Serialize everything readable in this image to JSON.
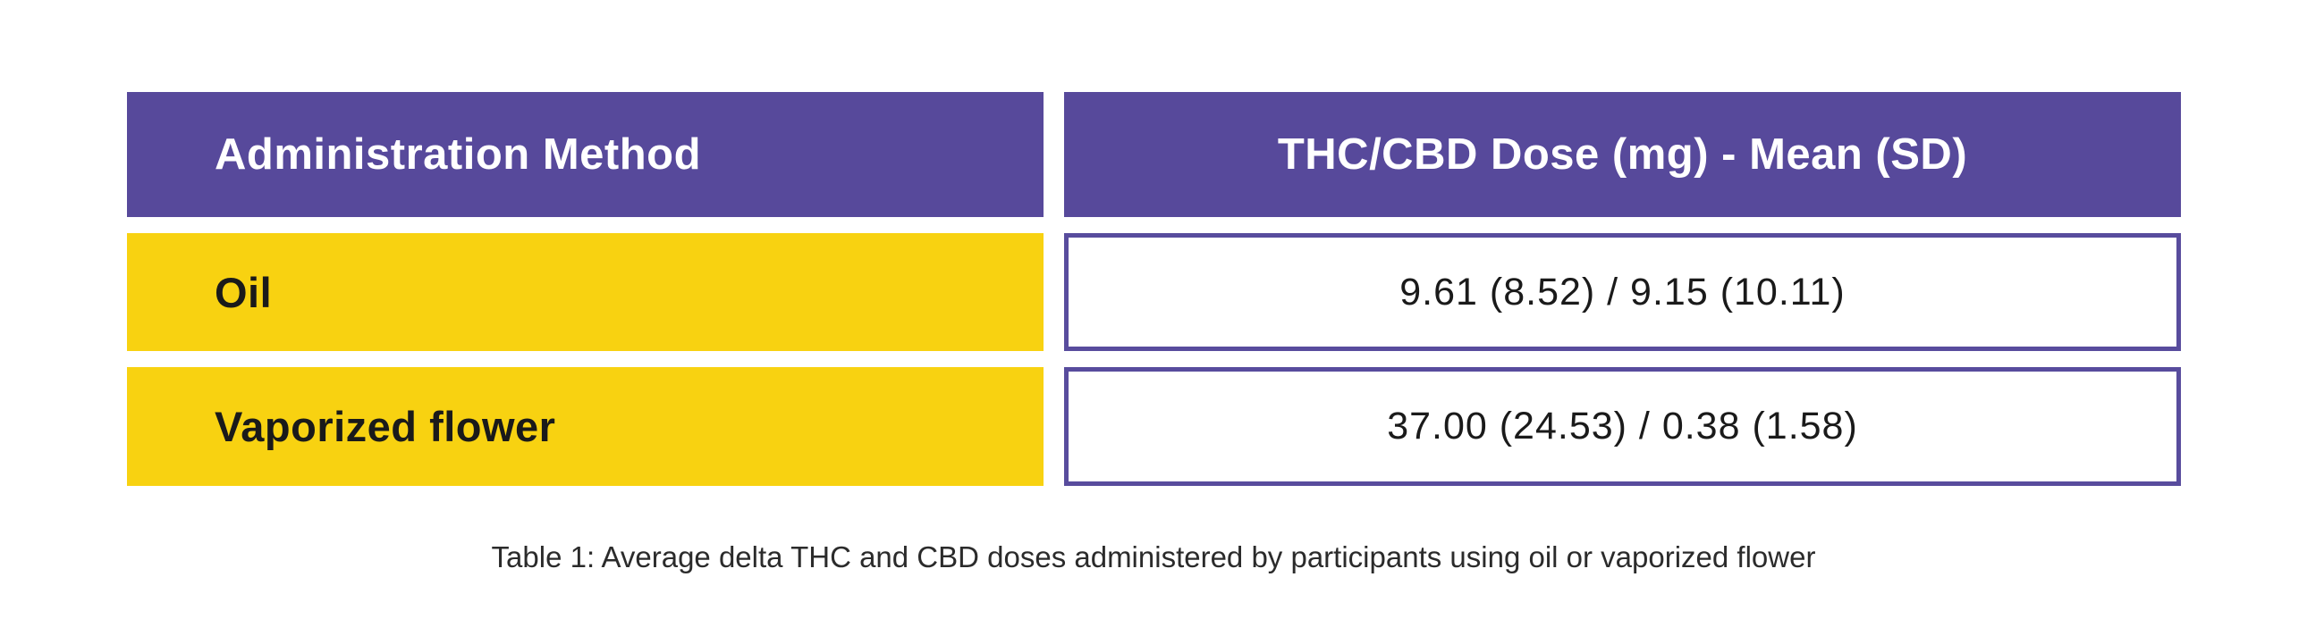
{
  "colors": {
    "header_bg": "#57499B",
    "cell_border": "#584C9D",
    "row_label_bg": "#F8D211",
    "header_text": "#FFFFFF",
    "body_text": "#1A1A1A",
    "caption_text": "#2B2B2B",
    "page_bg": "#FFFFFF"
  },
  "table": {
    "header": {
      "col1": "Administration Method",
      "col2": "THC/CBD Dose (mg) - Mean (SD)"
    },
    "rows": [
      {
        "method": "Oil",
        "dose": "9.61 (8.52) / 9.15 (10.11)"
      },
      {
        "method": "Vaporized flower",
        "dose": "37.00 (24.53) / 0.38 (1.58)"
      }
    ],
    "caption": "Table 1: Average delta THC and CBD doses administered by participants using oil or vaporized flower"
  },
  "chart_data": {
    "type": "table",
    "title": "Table 1: Average delta THC and CBD doses administered by participants using oil or vaporized flower",
    "columns": [
      "Administration Method",
      "THC/CBD Dose (mg) - Mean (SD)"
    ],
    "rows": [
      [
        "Oil",
        "9.61 (8.52) / 9.15 (10.11)"
      ],
      [
        "Vaporized flower",
        "37.00 (24.53) / 0.38 (1.58)"
      ]
    ],
    "values": {
      "oil": {
        "thc_mean": 9.61,
        "thc_sd": 8.52,
        "cbd_mean": 9.15,
        "cbd_sd": 10.11
      },
      "vaporized_flower": {
        "thc_mean": 37.0,
        "thc_sd": 24.53,
        "cbd_mean": 0.38,
        "cbd_sd": 1.58
      }
    },
    "layout": {
      "header_style": "purple banner, white bold text",
      "row_label_style": "yellow banner, black bold text",
      "value_cell_style": "white with purple border, centered text",
      "caption_position": "below table, centered"
    }
  }
}
